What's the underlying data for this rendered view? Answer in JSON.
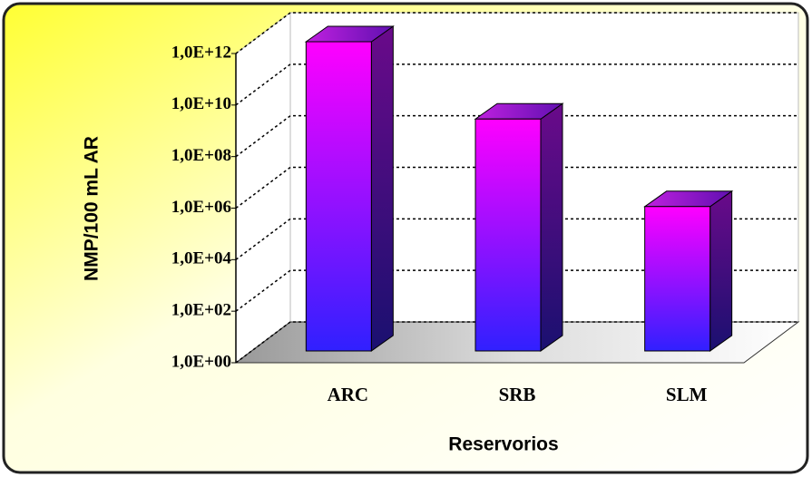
{
  "chart_data": {
    "type": "bar",
    "log_scale": true,
    "x_label": "Reservorios",
    "y_label": "NMP/100 mL AR",
    "categories": [
      "ARC",
      "SRB",
      "SLM"
    ],
    "values": [
      1000000000000,
      1000000000,
      400000
    ],
    "ylim": [
      1,
      1000000000000
    ],
    "yticks": [
      {
        "value": 1,
        "label": "1,0E+00"
      },
      {
        "value": 100,
        "label": "1,0E+02"
      },
      {
        "value": 10000,
        "label": "1,0E+04"
      },
      {
        "value": 1000000,
        "label": "1,0E+06"
      },
      {
        "value": 100000000,
        "label": "1,0E+08"
      },
      {
        "value": 10000000000,
        "label": "1,0E+10"
      },
      {
        "value": 1000000000000,
        "label": "1,0E+12"
      }
    ],
    "grid": true
  }
}
